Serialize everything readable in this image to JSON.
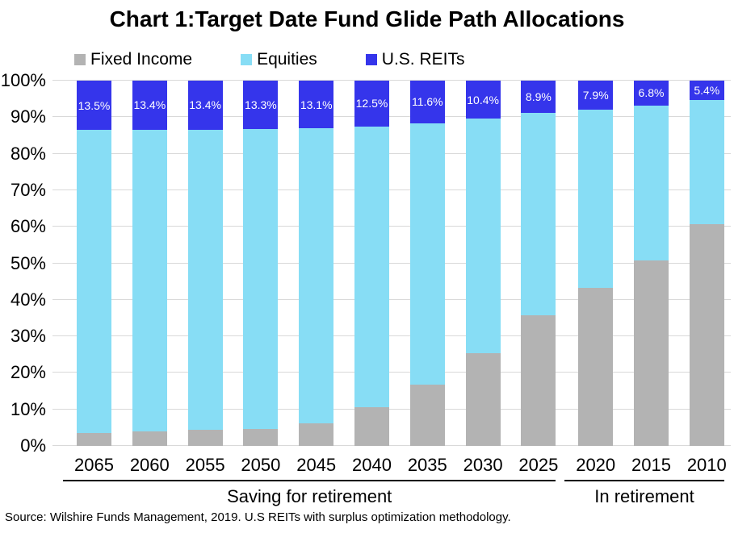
{
  "chart_data": {
    "type": "bar",
    "stacked": true,
    "title": "Chart 1:Target Date Fund Glide Path Allocations",
    "categories": [
      "2065",
      "2060",
      "2055",
      "2050",
      "2045",
      "2040",
      "2035",
      "2030",
      "2025",
      "2020",
      "2015",
      "2010"
    ],
    "series": [
      {
        "name": "Fixed Income",
        "color": "#b3b3b3",
        "values": [
          3.5,
          4.0,
          4.4,
          4.6,
          6.1,
          10.6,
          16.8,
          25.4,
          35.8,
          43.3,
          50.8,
          60.7
        ]
      },
      {
        "name": "Equities",
        "color": "#87ddf5",
        "values": [
          83.0,
          82.6,
          82.2,
          82.1,
          80.8,
          76.9,
          71.6,
          64.2,
          55.3,
          48.8,
          42.4,
          33.9
        ]
      },
      {
        "name": "U.S. REITs",
        "color": "#3535eb",
        "values": [
          13.5,
          13.4,
          13.4,
          13.3,
          13.1,
          12.5,
          11.6,
          10.4,
          8.9,
          7.9,
          6.8,
          5.4
        ],
        "data_labels": [
          "13.5%",
          "13.4%",
          "13.4%",
          "13.3%",
          "13.1%",
          "12.5%",
          "11.6%",
          "10.4%",
          "8.9%",
          "7.9%",
          "6.8%",
          "5.4%"
        ]
      }
    ],
    "y_ticks": [
      "0%",
      "10%",
      "20%",
      "30%",
      "40%",
      "50%",
      "60%",
      "70%",
      "80%",
      "90%",
      "100%"
    ],
    "ylim": [
      0,
      100
    ],
    "grid": true,
    "legend_position": "top",
    "groups": [
      {
        "label": "Saving for retirement",
        "start": 0,
        "end": 8
      },
      {
        "label": "In retirement",
        "start": 9,
        "end": 11
      }
    ],
    "colors": {
      "gridline": "#d9d9d9",
      "data_label_text": "#ffffff",
      "group_underline": "#000000"
    }
  },
  "source": "Source: Wilshire Funds Management, 2019.  U.S REITs with surplus optimization methodology."
}
